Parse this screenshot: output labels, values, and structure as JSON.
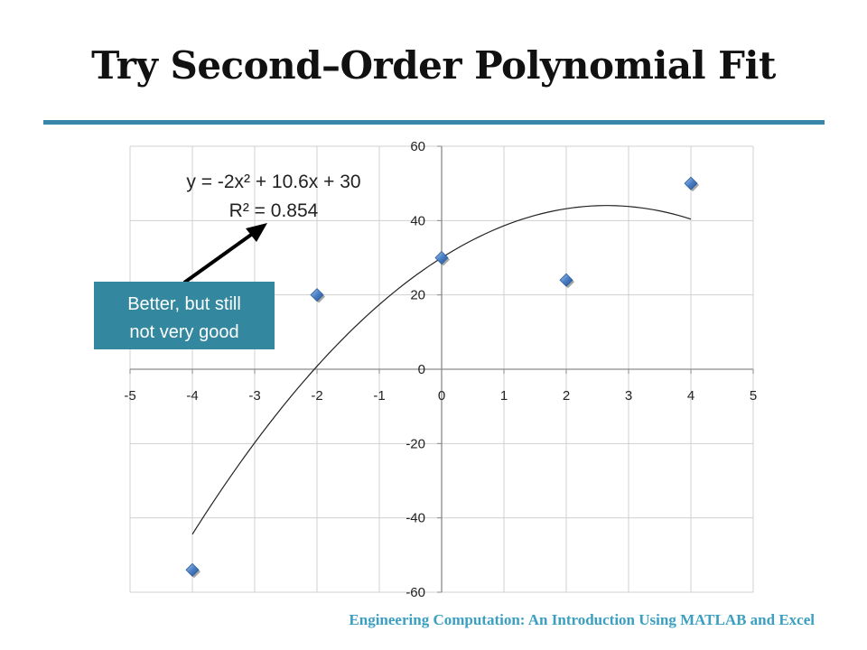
{
  "slide": {
    "title": "Try Second–Order Polynomial Fit",
    "footer": "Engineering Computation: An Introduction Using MATLAB and Excel",
    "accent_color": "#3a86ab",
    "footer_color": "#3a9fc0"
  },
  "chart_data": {
    "type": "scatter",
    "x": [
      -4,
      -2,
      0,
      2,
      4
    ],
    "y": [
      -54,
      20,
      30,
      24,
      50
    ],
    "xlim": [
      -5,
      5
    ],
    "ylim": [
      -60,
      60
    ],
    "x_ticks": [
      -5,
      -4,
      -3,
      -2,
      -1,
      0,
      1,
      2,
      3,
      4,
      5
    ],
    "y_ticks": [
      -60,
      -40,
      -20,
      0,
      20,
      40,
      60
    ],
    "grid": true,
    "marker": "diamond",
    "marker_color": "#4a7fc4",
    "trendline": {
      "type": "polynomial",
      "order": 2,
      "coefficients": [
        -2,
        10.6,
        30
      ],
      "x_range": [
        -4,
        4
      ],
      "equation_label": "y = -2x² + 10.6x + 30",
      "r_squared_label": "R² = 0.854"
    },
    "callout": {
      "text_line1": "Better, but still",
      "text_line2": "not very good",
      "fill_color": "#33879f"
    }
  }
}
